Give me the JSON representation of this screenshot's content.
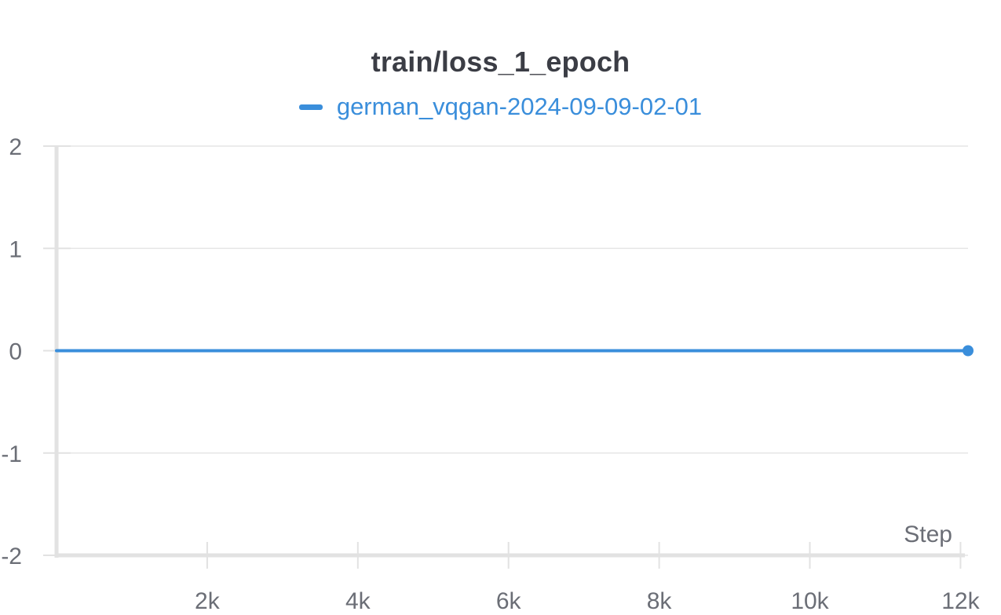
{
  "chart_data": {
    "type": "line",
    "title": "train/loss_1_epoch",
    "xlabel": "Step",
    "ylabel": "",
    "xlim": [
      0,
      12100
    ],
    "ylim": [
      -2,
      2
    ],
    "x_ticks": [
      2000,
      4000,
      6000,
      8000,
      10000,
      12000
    ],
    "x_tick_labels": [
      "2k",
      "4k",
      "6k",
      "8k",
      "10k",
      "12k"
    ],
    "y_ticks": [
      -2,
      -1,
      0,
      1,
      2
    ],
    "y_tick_labels": [
      "-2",
      "-1",
      "0",
      "1",
      "2"
    ],
    "grid": true,
    "legend_position": "top-center",
    "series": [
      {
        "name": "german_vqgan-2024-09-09-02-01",
        "color": "#3a8edb",
        "x": [
          0,
          12100
        ],
        "y": [
          0,
          0
        ],
        "end_marker": true
      }
    ]
  }
}
